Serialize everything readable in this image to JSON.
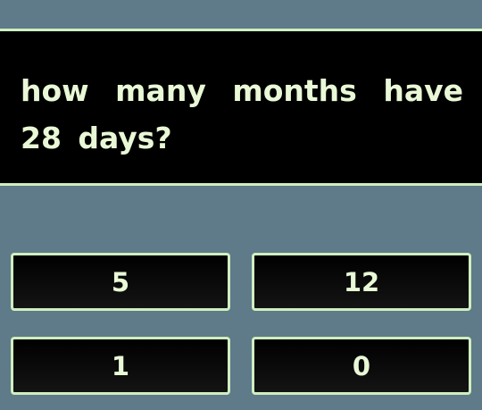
{
  "question": {
    "text": "how many months have 28 days?"
  },
  "answers": [
    {
      "label": "5"
    },
    {
      "label": "12"
    },
    {
      "label": "1"
    },
    {
      "label": "0"
    }
  ],
  "colors": {
    "background": "#5f7a88",
    "panel": "#000000",
    "border": "#cfeec0",
    "text": "#e9f8d6"
  }
}
